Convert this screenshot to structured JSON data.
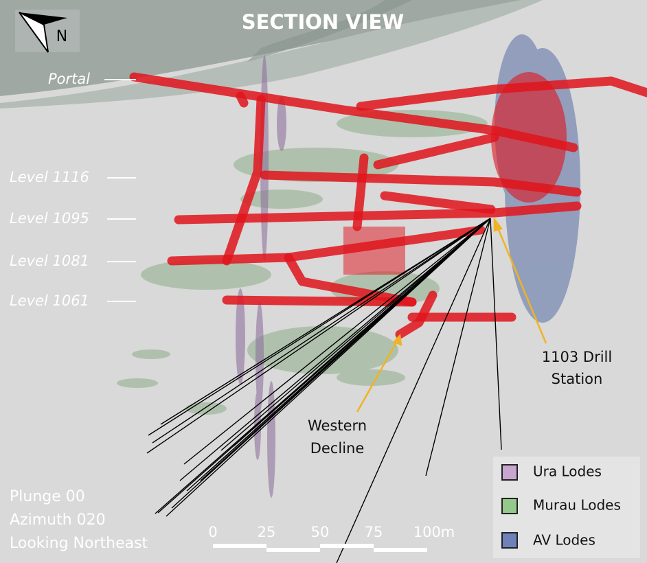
{
  "title": "SECTION VIEW",
  "compass": "N",
  "levels": [
    "Portal",
    "Level 1116",
    "Level 1095",
    "Level 1081",
    "Level 1061"
  ],
  "annotations": {
    "drill_station": [
      "1103 Drill",
      "Station"
    ],
    "western_decline": [
      "Western",
      "Decline"
    ]
  },
  "view_info": [
    "Plunge 00",
    "Azimuth 020",
    "Looking Northeast"
  ],
  "scale_bar": [
    "0",
    "25",
    "50",
    "75",
    "100m"
  ],
  "legend": [
    "Ura Lodes",
    "Murau Lodes",
    "AV Lodes"
  ]
}
